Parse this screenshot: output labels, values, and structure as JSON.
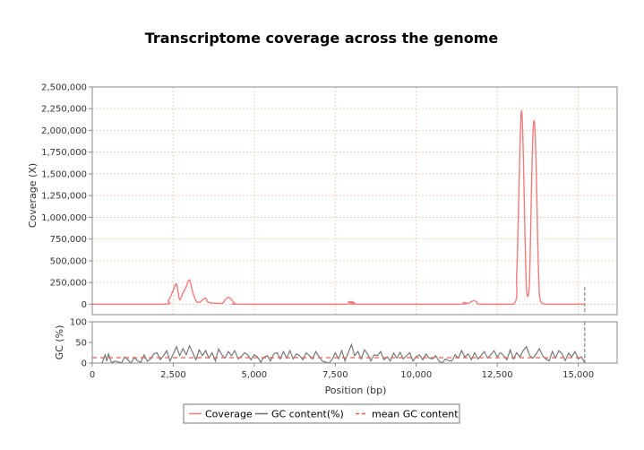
{
  "chart_data": [
    {
      "type": "line",
      "title": "Transcriptome coverage across the genome",
      "ylabel": "Coverage (X)",
      "xlim": [
        0,
        16200
      ],
      "ylim": [
        -120000,
        2500000
      ],
      "yticks": [
        0,
        250000,
        500000,
        750000,
        1000000,
        1250000,
        1500000,
        1750000,
        2000000,
        2250000,
        2500000
      ],
      "ytick_labels": [
        "0",
        "250,000",
        "500,000",
        "750,000",
        "1,000,000",
        "1,250,000",
        "1,500,000",
        "1,750,000",
        "2,000,000",
        "2,250,000",
        "2,500,000"
      ],
      "xticks": [
        0,
        2500,
        5000,
        7500,
        10000,
        12500,
        15000
      ],
      "grid": true,
      "series": [
        {
          "name": "Coverage",
          "color": "#f07c7c",
          "x": [
            0,
            2200,
            2350,
            2500,
            2600,
            2700,
            2800,
            2900,
            3000,
            3100,
            3200,
            3300,
            3400,
            3500,
            3600,
            4000,
            4100,
            4200,
            4300,
            4400,
            4600,
            7800,
            7900,
            8000,
            8100,
            8200,
            11300,
            11450,
            11600,
            11700,
            11800,
            11900,
            12000,
            13000,
            13100,
            13150,
            13200,
            13250,
            13300,
            13350,
            13400,
            13450,
            13500,
            13550,
            13600,
            13650,
            13700,
            13750,
            13800,
            13850,
            13900,
            14000,
            14500,
            15200
          ],
          "values": [
            0,
            0,
            40000,
            160000,
            230000,
            50000,
            130000,
            200000,
            280000,
            140000,
            40000,
            20000,
            50000,
            70000,
            20000,
            10000,
            50000,
            80000,
            50000,
            10000,
            0,
            0,
            25000,
            30000,
            15000,
            0,
            0,
            20000,
            10000,
            30000,
            40000,
            10000,
            0,
            0,
            350000,
            1000000,
            1800000,
            2230000,
            1800000,
            900000,
            200000,
            90000,
            300000,
            1200000,
            1950000,
            2090000,
            1600000,
            700000,
            120000,
            30000,
            10000,
            0,
            0,
            0
          ]
        }
      ],
      "end_marker_x": 15200
    },
    {
      "type": "line",
      "ylabel": "GC (%)",
      "xlabel": "Position (bp)",
      "xlim": [
        0,
        16200
      ],
      "ylim": [
        0,
        100
      ],
      "yticks": [
        0,
        50,
        100
      ],
      "xticks": [
        0,
        2500,
        5000,
        7500,
        10000,
        12500,
        15000
      ],
      "xtick_labels": [
        "0",
        "2,500",
        "5,000",
        "7,500",
        "10,000",
        "12,500",
        "15,000"
      ],
      "series": [
        {
          "name": "GC content(%)",
          "color": "#6e6e6e",
          "x": [
            0,
            300,
            400,
            450,
            500,
            600,
            700,
            800,
            900,
            1000,
            1100,
            1200,
            1300,
            1400,
            1500,
            1600,
            1700,
            1800,
            1900,
            2000,
            2100,
            2200,
            2300,
            2400,
            2500,
            2600,
            2700,
            2800,
            2900,
            3000,
            3100,
            3200,
            3300,
            3400,
            3500,
            3600,
            3700,
            3800,
            3900,
            4000,
            4100,
            4200,
            4300,
            4400,
            4500,
            4600,
            4700,
            4800,
            4900,
            5000,
            5100,
            5200,
            5300,
            5400,
            5500,
            5600,
            5700,
            5800,
            5900,
            6000,
            6100,
            6200,
            6300,
            6400,
            6500,
            6600,
            6700,
            6800,
            6900,
            7000,
            7100,
            7200,
            7300,
            7400,
            7500,
            7600,
            7700,
            7800,
            7900,
            8000,
            8100,
            8200,
            8300,
            8400,
            8500,
            8600,
            8700,
            8800,
            8900,
            9000,
            9100,
            9200,
            9300,
            9400,
            9500,
            9600,
            9700,
            9800,
            9900,
            10000,
            10100,
            10200,
            10300,
            10400,
            10500,
            10600,
            10700,
            10800,
            10900,
            11000,
            11100,
            11200,
            11300,
            11400,
            11500,
            11600,
            11700,
            11800,
            11900,
            12000,
            12100,
            12200,
            12300,
            12400,
            12500,
            12600,
            12700,
            12800,
            12900,
            13000,
            13100,
            13200,
            13300,
            13400,
            13500,
            13600,
            13700,
            13800,
            13900,
            14000,
            14100,
            14200,
            14300,
            14400,
            14500,
            14600,
            14700,
            14800,
            14900,
            15000,
            15100,
            15200
          ],
          "values": [
            0,
            0,
            20,
            5,
            22,
            0,
            5,
            3,
            0,
            15,
            8,
            0,
            14,
            5,
            2,
            20,
            4,
            10,
            22,
            25,
            8,
            18,
            30,
            5,
            22,
            40,
            18,
            35,
            20,
            42,
            25,
            8,
            32,
            18,
            30,
            12,
            25,
            5,
            34,
            20,
            12,
            28,
            18,
            30,
            10,
            16,
            25,
            20,
            8,
            20,
            15,
            2,
            14,
            18,
            5,
            22,
            25,
            10,
            28,
            12,
            30,
            10,
            22,
            18,
            8,
            25,
            18,
            10,
            28,
            15,
            5,
            2,
            0,
            8,
            25,
            10,
            30,
            5,
            25,
            45,
            18,
            28,
            10,
            32,
            22,
            5,
            20,
            18,
            28,
            8,
            15,
            5,
            24,
            12,
            26,
            10,
            18,
            25,
            5,
            16,
            20,
            8,
            22,
            12,
            10,
            18,
            5,
            0,
            10,
            6,
            5,
            20,
            12,
            30,
            15,
            22,
            8,
            25,
            10,
            18,
            28,
            12,
            20,
            30,
            15,
            25,
            18,
            8,
            32,
            10,
            25,
            15,
            30,
            40,
            18,
            12,
            22,
            35,
            18,
            10,
            5,
            28,
            12,
            30,
            22,
            6,
            24,
            15,
            28,
            10,
            15,
            0
          ]
        },
        {
          "name": "mean GC content",
          "color": "#e85c5c",
          "dashed": true,
          "value": 13
        }
      ],
      "end_marker_x": 15200
    }
  ],
  "legend": {
    "placement": "bottom",
    "items": [
      {
        "label": "Coverage",
        "color": "#f07c7c",
        "style": "solid"
      },
      {
        "label": "GC content(%)",
        "color": "#6e6e6e",
        "style": "solid"
      },
      {
        "label": "mean GC content",
        "color": "#e85c5c",
        "style": "dashed"
      }
    ]
  }
}
